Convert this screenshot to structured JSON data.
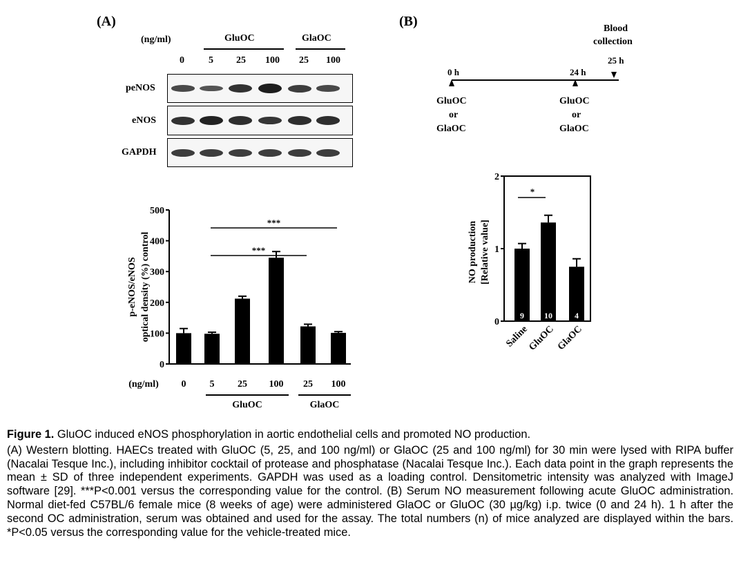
{
  "panelA": {
    "label": "(A)",
    "unit_label": "(ng/ml)",
    "group_gluoc": "GluOC",
    "group_glaoc": "GlaOC",
    "lanes": [
      "0",
      "5",
      "25",
      "100",
      "25",
      "100"
    ],
    "blots": [
      {
        "name": "peNOS",
        "band_levels": [
          0.55,
          0.45,
          0.8,
          1.0,
          0.7,
          0.55
        ]
      },
      {
        "name": "eNOS",
        "band_levels": [
          0.8,
          0.95,
          0.85,
          0.75,
          0.85,
          0.85
        ]
      },
      {
        "name": "GAPDH",
        "band_levels": [
          0.7,
          0.7,
          0.7,
          0.7,
          0.7,
          0.7
        ]
      }
    ]
  },
  "panelB": {
    "label": "(B)",
    "timeline": {
      "events": [
        {
          "time": "0 h",
          "label_lines": [
            "GluOC",
            "or",
            "GlaOC"
          ]
        },
        {
          "time": "24 h",
          "label_lines": [
            "GluOC",
            "or",
            "GlaOC"
          ]
        }
      ],
      "end_time": "25 h",
      "end_label_lines": [
        "Blood",
        "collection"
      ]
    }
  },
  "chart_data": [
    {
      "type": "bar",
      "panel": "A",
      "categories": [
        "0",
        "5",
        "25",
        "100",
        "25",
        "100"
      ],
      "values": [
        100,
        98,
        212,
        345,
        122,
        101
      ],
      "errors": [
        15,
        5,
        8,
        20,
        7,
        4
      ],
      "ylabel_lines": [
        "p-eNOS/eNOS",
        "optical density (%) control"
      ],
      "xlabel": "(ng/ml)",
      "groups": [
        {
          "label": "GluOC",
          "categories": [
            "5",
            "25",
            "100"
          ]
        },
        {
          "label": "GlaOC",
          "categories": [
            "25",
            "100"
          ]
        }
      ],
      "yticks": [
        "0",
        "100",
        "200",
        "300",
        "400",
        "500"
      ],
      "ylim": [
        0,
        500
      ],
      "significance": [
        {
          "from": "5",
          "to": "25",
          "label": "***"
        },
        {
          "from": "5",
          "to": "100",
          "label": "***"
        }
      ]
    },
    {
      "type": "bar",
      "panel": "B",
      "categories": [
        "Saline",
        "GluOC",
        "GlaOC"
      ],
      "values": [
        1.0,
        1.36,
        0.75
      ],
      "errors": [
        0.07,
        0.1,
        0.11
      ],
      "n_labels": [
        "9",
        "10",
        "4"
      ],
      "ylabel_lines": [
        "NO production",
        "[Relative value]"
      ],
      "yticks": [
        "0",
        "1",
        "2"
      ],
      "ylim": [
        0,
        2
      ],
      "significance": [
        {
          "from": "Saline",
          "to": "GluOC",
          "label": "*"
        }
      ]
    }
  ],
  "caption": {
    "title_bold": "Figure 1.",
    "title_text": " GluOC induced eNOS phosphorylation in aortic endothelial cells and promoted NO production.",
    "body": "(A) Western blotting. HAECs treated with GluOC (5, 25, and 100 ng/ml) or GlaOC (25 and 100 ng/ml) for 30 min were lysed with RIPA buffer (Nacalai Tesque Inc.), including inhibitor cocktail of protease and phosphatase (Nacalai Tesque Inc.). Each data point in the graph represents the mean ± SD of three independent experiments. GAPDH was used as a loading control. Densitometric intensity was analyzed with ImageJ software [29]. ***P<0.001 versus the corresponding value for the control. (B) Serum NO measurement following acute GluOC administration. Normal diet-fed C57BL/6 female mice (8 weeks of age) were administered GlaOC or GluOC (30 µg/kg) i.p. twice (0 and 24 h). 1 h after the second OC administration, serum was obtained and used for the assay. The total numbers (n) of mice analyzed are displayed within the bars. *P<0.05 versus the corresponding value for the vehicle-treated mice."
  }
}
